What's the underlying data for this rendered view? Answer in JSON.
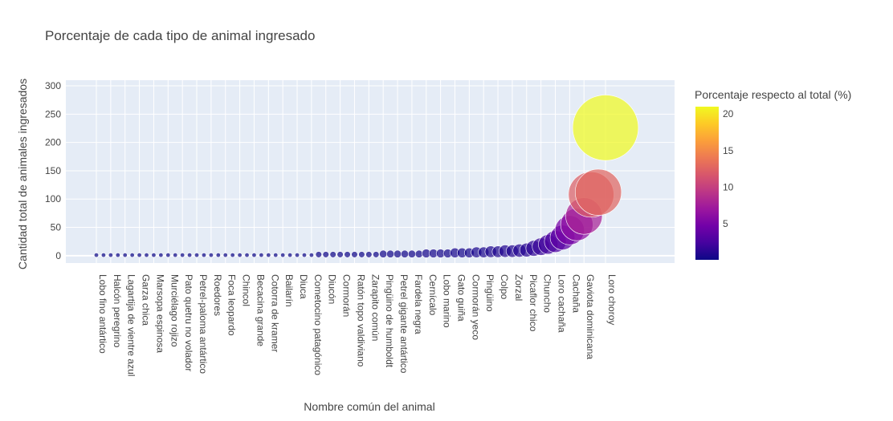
{
  "chart_data": {
    "type": "scatter",
    "title": "Porcentaje de cada tipo de animal ingresado",
    "xlabel": "Nombre común del animal",
    "ylabel": "Cantidad total de animales ingresados",
    "ylim": [
      -13,
      310
    ],
    "yticks": [
      0,
      50,
      100,
      150,
      200,
      250,
      300
    ],
    "grid": true,
    "colorbar": {
      "title": "Porcentaje respecto al total (%)",
      "min": 0.1,
      "max": 21,
      "ticks": [
        5,
        10,
        15,
        20
      ],
      "colorscale": [
        "#0d0887",
        "#46039f",
        "#7201a8",
        "#9c179e",
        "#bd3786",
        "#d8576b",
        "#ed7953",
        "#fb9f3a",
        "#fdca26",
        "#f0f921"
      ]
    },
    "points": [
      {
        "label": "Lobo fino antártico",
        "y": 1
      },
      {
        "label": "",
        "y": 1
      },
      {
        "label": "Halcón peregrino",
        "y": 1
      },
      {
        "label": "",
        "y": 1
      },
      {
        "label": "Lagartija de vientre azul",
        "y": 1
      },
      {
        "label": "",
        "y": 1
      },
      {
        "label": "Garza chica",
        "y": 1
      },
      {
        "label": "",
        "y": 1
      },
      {
        "label": "Marsopa espinosa",
        "y": 1
      },
      {
        "label": "",
        "y": 1
      },
      {
        "label": "Murciélago rojizo",
        "y": 1
      },
      {
        "label": "",
        "y": 1
      },
      {
        "label": "Pato quetru no volador",
        "y": 1
      },
      {
        "label": "",
        "y": 1
      },
      {
        "label": "Petrel-paloma antártico",
        "y": 1
      },
      {
        "label": "",
        "y": 1
      },
      {
        "label": "Roedores",
        "y": 1
      },
      {
        "label": "",
        "y": 1
      },
      {
        "label": "Foca leopardo",
        "y": 1
      },
      {
        "label": "",
        "y": 1
      },
      {
        "label": "Chincol",
        "y": 1
      },
      {
        "label": "",
        "y": 1
      },
      {
        "label": "Becacina grande",
        "y": 1
      },
      {
        "label": "",
        "y": 1
      },
      {
        "label": "Cotorra de kramer",
        "y": 1
      },
      {
        "label": "",
        "y": 1
      },
      {
        "label": "Bailarín",
        "y": 1
      },
      {
        "label": "",
        "y": 1
      },
      {
        "label": "Diuca",
        "y": 1
      },
      {
        "label": "",
        "y": 1
      },
      {
        "label": "Cometocino patagónico",
        "y": 1
      },
      {
        "label": "",
        "y": 2
      },
      {
        "label": "Diucón",
        "y": 2
      },
      {
        "label": "",
        "y": 2
      },
      {
        "label": "Cormorán",
        "y": 2
      },
      {
        "label": "",
        "y": 2
      },
      {
        "label": "Ratón topo valdiviano",
        "y": 2
      },
      {
        "label": "",
        "y": 2
      },
      {
        "label": "Zarapito común",
        "y": 2
      },
      {
        "label": "",
        "y": 2
      },
      {
        "label": "Pingüino de humboldt",
        "y": 3
      },
      {
        "label": "",
        "y": 3
      },
      {
        "label": "Petrel gigante antártico",
        "y": 3
      },
      {
        "label": "",
        "y": 3
      },
      {
        "label": "Fardela negra",
        "y": 3
      },
      {
        "label": "",
        "y": 3
      },
      {
        "label": "Cernícalo",
        "y": 4
      },
      {
        "label": "",
        "y": 4
      },
      {
        "label": "Lobo marino",
        "y": 4
      },
      {
        "label": "",
        "y": 4
      },
      {
        "label": "Gato guiña",
        "y": 5
      },
      {
        "label": "",
        "y": 5
      },
      {
        "label": "Cormorán yeco",
        "y": 5
      },
      {
        "label": "",
        "y": 6
      },
      {
        "label": "Pingüino",
        "y": 6
      },
      {
        "label": "",
        "y": 7
      },
      {
        "label": "Colpo",
        "y": 7
      },
      {
        "label": "",
        "y": 8
      },
      {
        "label": "Zorzal",
        "y": 8
      },
      {
        "label": "",
        "y": 9
      },
      {
        "label": "Picaflor chico",
        "y": 10
      },
      {
        "label": "",
        "y": 13
      },
      {
        "label": "Chuncho",
        "y": 16
      },
      {
        "label": "",
        "y": 20
      },
      {
        "label": "Loro cachaña",
        "y": 25
      },
      {
        "label": "",
        "y": 32
      },
      {
        "label": "Cachaña",
        "y": 45
      },
      {
        "label": "",
        "y": 55
      },
      {
        "label": "Gaviota dominicana",
        "y": 70
      },
      {
        "label": "",
        "y": 108
      },
      {
        "label": "",
        "y": 112
      },
      {
        "label": "Loro choroy",
        "y": 226
      }
    ]
  }
}
